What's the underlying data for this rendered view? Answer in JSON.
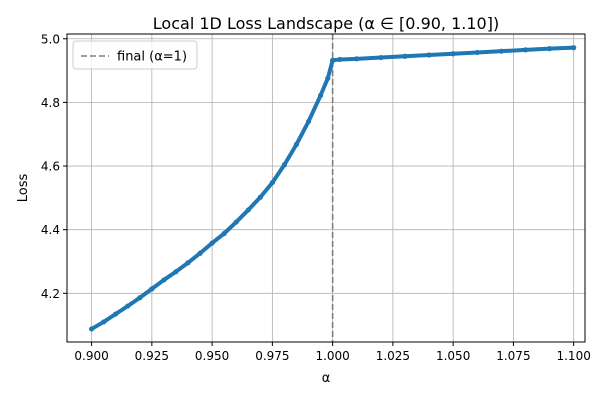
{
  "chart_data": {
    "type": "line",
    "title": "Local 1D Loss Landscape (α ∈ [0.90, 1.10])",
    "xlabel": "α",
    "ylabel": "Loss",
    "xlim": [
      0.8898,
      1.1047
    ],
    "ylim": [
      4.047,
      5.015
    ],
    "grid": true,
    "legend_position": "top-left",
    "x_ticks": [
      "0.900",
      "0.925",
      "0.950",
      "0.975",
      "1.000",
      "1.025",
      "1.050",
      "1.075",
      "1.100"
    ],
    "y_ticks": [
      "4.2",
      "4.4",
      "4.6",
      "4.8",
      "5.0"
    ],
    "series": [
      {
        "name": "",
        "color": "#1f77b4",
        "points": [
          [
            0.9,
            4.088
          ],
          [
            0.905,
            4.11
          ],
          [
            0.91,
            4.135
          ],
          [
            0.915,
            4.16
          ],
          [
            0.92,
            4.186
          ],
          [
            0.925,
            4.214
          ],
          [
            0.93,
            4.242
          ],
          [
            0.935,
            4.268
          ],
          [
            0.94,
            4.296
          ],
          [
            0.945,
            4.326
          ],
          [
            0.95,
            4.358
          ],
          [
            0.955,
            4.388
          ],
          [
            0.96,
            4.424
          ],
          [
            0.965,
            4.462
          ],
          [
            0.97,
            4.502
          ],
          [
            0.975,
            4.548
          ],
          [
            0.98,
            4.604
          ],
          [
            0.985,
            4.668
          ],
          [
            0.99,
            4.74
          ],
          [
            0.995,
            4.822
          ],
          [
            0.998,
            4.876
          ],
          [
            1.0,
            4.932
          ],
          [
            1.003,
            4.935
          ],
          [
            1.01,
            4.937
          ],
          [
            1.02,
            4.941
          ],
          [
            1.03,
            4.945
          ],
          [
            1.04,
            4.949
          ],
          [
            1.05,
            4.953
          ],
          [
            1.06,
            4.957
          ],
          [
            1.07,
            4.961
          ],
          [
            1.08,
            4.965
          ],
          [
            1.09,
            4.969
          ],
          [
            1.1,
            4.972
          ]
        ]
      }
    ],
    "vline": {
      "x": 1.0,
      "label": "final (α=1)",
      "color": "#7f7f7f",
      "style": "dashed"
    }
  }
}
